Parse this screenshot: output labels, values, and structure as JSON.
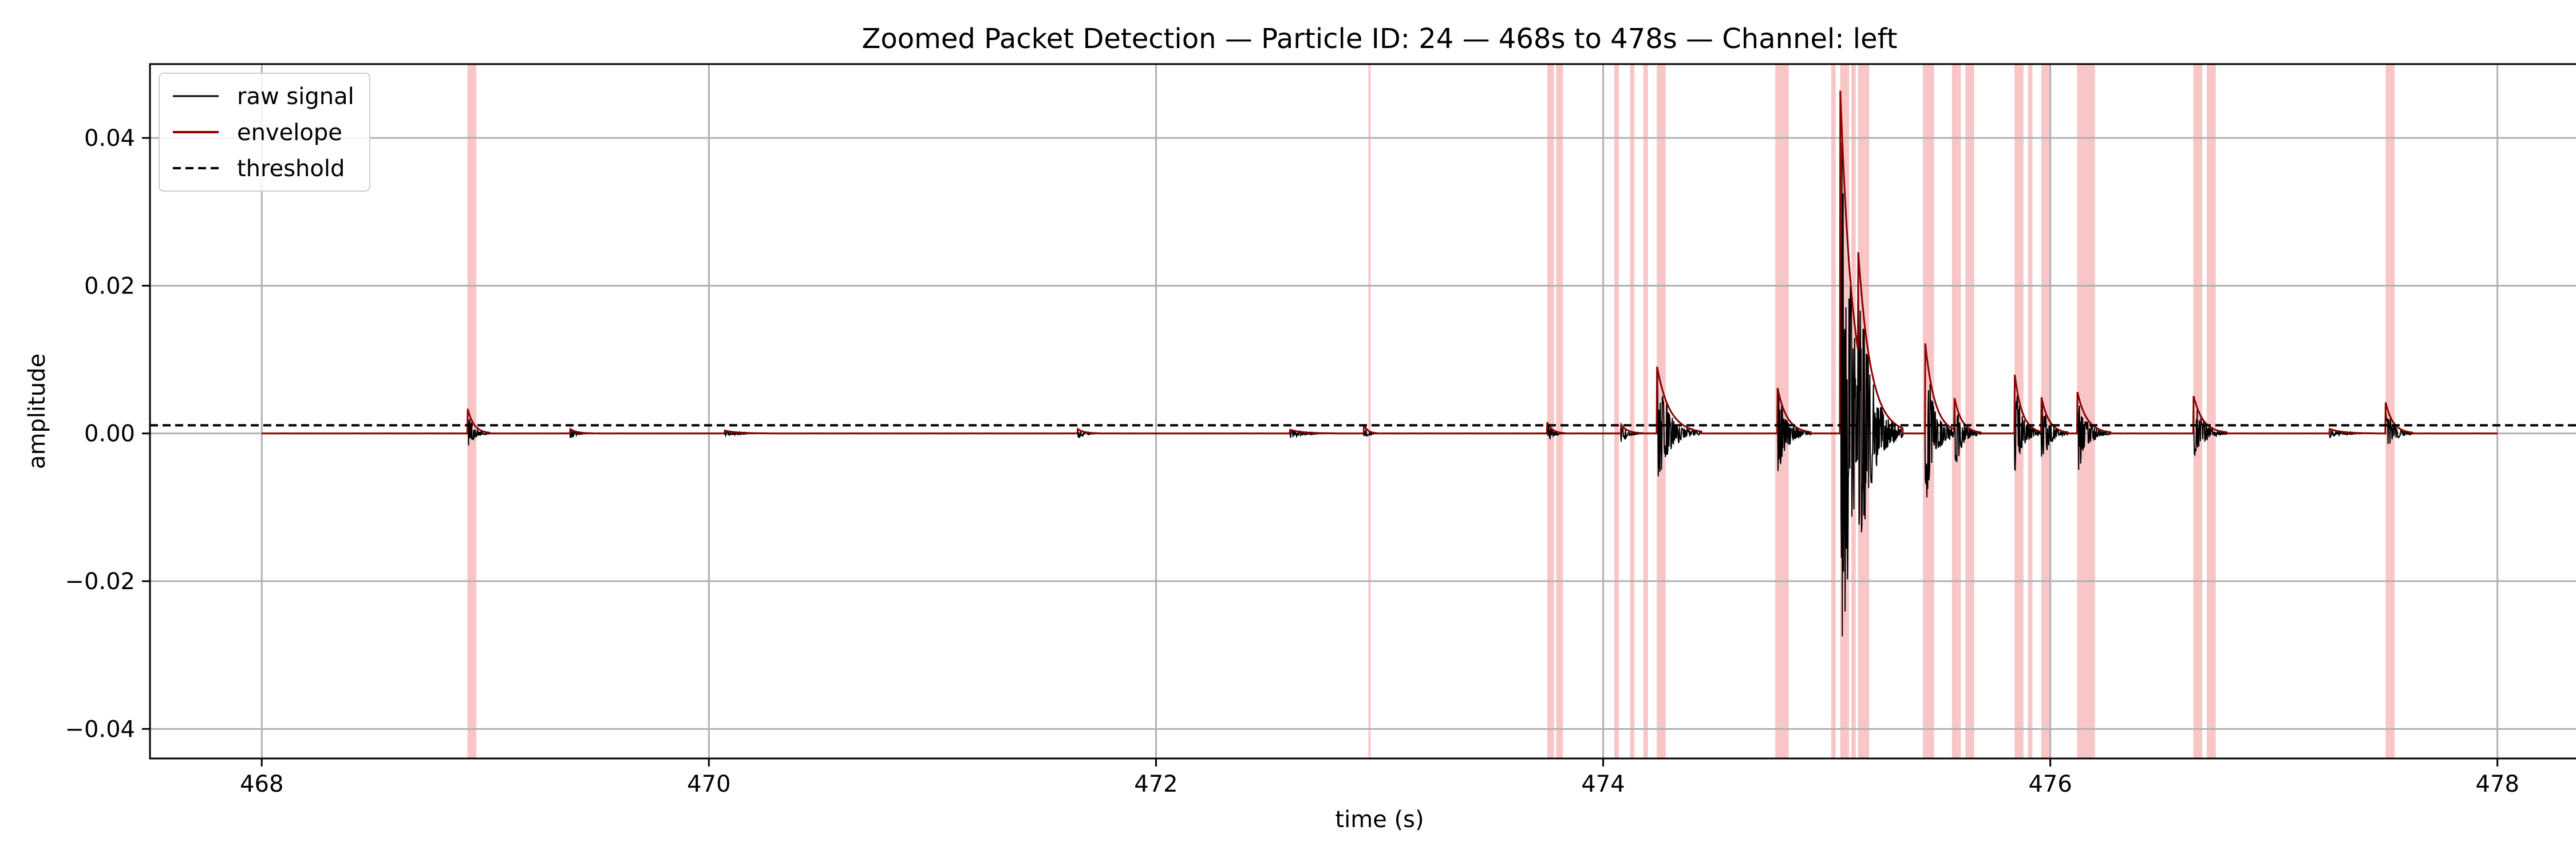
{
  "chart_data": {
    "type": "line",
    "title": "Zoomed Packet Detection — Particle ID: 24 — 468s to 478s — Channel: left",
    "xlabel": "time (s)",
    "ylabel": "amplitude",
    "xlim": [
      467.5,
      478.5
    ],
    "ylim": [
      -0.044,
      0.05
    ],
    "xticks": [
      468,
      470,
      472,
      474,
      476,
      478
    ],
    "yticks": [
      -0.04,
      -0.02,
      0.0,
      0.02,
      0.04
    ],
    "ytick_labels": [
      "−0.04",
      "−0.02",
      "0.00",
      "0.02",
      "0.04"
    ],
    "grid": true,
    "legend_position": "top-left",
    "threshold": 0.0011,
    "colors": {
      "raw_signal": "#000000",
      "envelope": "#8b0000",
      "threshold": "#000000",
      "packet_span": "#f08080",
      "grid": "#b0b0b0"
    },
    "series": [
      {
        "name": "raw signal",
        "style": "solid"
      },
      {
        "name": "envelope",
        "style": "solid"
      },
      {
        "name": "threshold",
        "style": "dashed"
      }
    ],
    "detected_packets": [
      [
        468.92,
        468.96
      ],
      [
        472.95,
        472.96
      ],
      [
        473.75,
        473.78
      ],
      [
        473.79,
        473.82
      ],
      [
        474.05,
        474.07
      ],
      [
        474.12,
        474.14
      ],
      [
        474.18,
        474.2
      ],
      [
        474.24,
        474.28
      ],
      [
        474.77,
        474.83
      ],
      [
        475.02,
        475.04
      ],
      [
        475.06,
        475.1
      ],
      [
        475.11,
        475.13
      ],
      [
        475.14,
        475.19
      ],
      [
        475.43,
        475.48
      ],
      [
        475.56,
        475.6
      ],
      [
        475.62,
        475.66
      ],
      [
        475.84,
        475.88
      ],
      [
        475.9,
        475.92
      ],
      [
        475.96,
        476.0
      ],
      [
        476.12,
        476.2
      ],
      [
        476.64,
        476.68
      ],
      [
        476.7,
        476.74
      ],
      [
        477.5,
        477.54
      ]
    ],
    "bursts": [
      {
        "t": 468.92,
        "peak_env": 0.0035,
        "peak_raw": 0.003,
        "min_raw": -0.0022,
        "dur": 0.1
      },
      {
        "t": 469.38,
        "peak_env": 0.0006,
        "peak_raw": 0.0006,
        "min_raw": -0.0008,
        "dur": 0.1
      },
      {
        "t": 470.07,
        "peak_env": 0.0004,
        "peak_raw": 0.0004,
        "min_raw": -0.0004,
        "dur": 0.2
      },
      {
        "t": 471.65,
        "peak_env": 0.0006,
        "peak_raw": 0.0006,
        "min_raw": -0.0008,
        "dur": 0.1
      },
      {
        "t": 472.6,
        "peak_env": 0.0005,
        "peak_raw": 0.0005,
        "min_raw": -0.0007,
        "dur": 0.2
      },
      {
        "t": 472.93,
        "peak_env": 0.0012,
        "peak_raw": 0.0012,
        "min_raw": -0.001,
        "dur": 0.06
      },
      {
        "t": 473.75,
        "peak_env": 0.0015,
        "peak_raw": 0.0015,
        "min_raw": -0.0015,
        "dur": 0.08
      },
      {
        "t": 474.08,
        "peak_env": 0.0012,
        "peak_raw": 0.0012,
        "min_raw": -0.0015,
        "dur": 0.1
      },
      {
        "t": 474.24,
        "peak_env": 0.0092,
        "peak_raw": 0.009,
        "min_raw": -0.0072,
        "dur": 0.2
      },
      {
        "t": 474.78,
        "peak_env": 0.0062,
        "peak_raw": 0.006,
        "min_raw": -0.0058,
        "dur": 0.15
      },
      {
        "t": 475.06,
        "peak_env": 0.047,
        "peak_raw": 0.046,
        "min_raw": -0.04,
        "dur": 0.2
      },
      {
        "t": 475.14,
        "peak_env": 0.025,
        "peak_raw": 0.024,
        "min_raw": -0.021,
        "dur": 0.2
      },
      {
        "t": 475.44,
        "peak_env": 0.0125,
        "peak_raw": 0.012,
        "min_raw": -0.0112,
        "dur": 0.15
      },
      {
        "t": 475.57,
        "peak_env": 0.005,
        "peak_raw": 0.005,
        "min_raw": -0.0058,
        "dur": 0.12
      },
      {
        "t": 475.84,
        "peak_env": 0.0082,
        "peak_raw": 0.008,
        "min_raw": -0.006,
        "dur": 0.12
      },
      {
        "t": 475.96,
        "peak_env": 0.005,
        "peak_raw": 0.005,
        "min_raw": -0.005,
        "dur": 0.12
      },
      {
        "t": 476.12,
        "peak_env": 0.0058,
        "peak_raw": 0.0055,
        "min_raw": -0.006,
        "dur": 0.15
      },
      {
        "t": 476.64,
        "peak_env": 0.0052,
        "peak_raw": 0.005,
        "min_raw": -0.0042,
        "dur": 0.15
      },
      {
        "t": 477.25,
        "peak_env": 0.0006,
        "peak_raw": 0.0006,
        "min_raw": -0.0006,
        "dur": 0.2
      },
      {
        "t": 477.5,
        "peak_env": 0.0042,
        "peak_raw": 0.004,
        "min_raw": -0.0032,
        "dur": 0.12
      }
    ],
    "signal_time_range": [
      468.0,
      478.0
    ]
  }
}
